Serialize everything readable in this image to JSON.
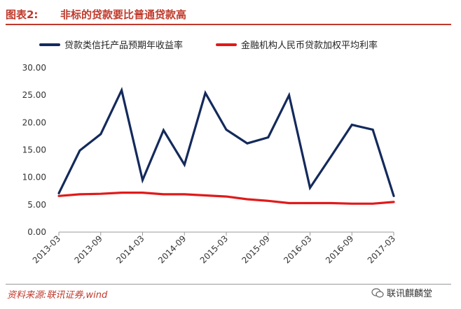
{
  "header": {
    "prefix": "图表2:",
    "title": "非标的贷款要比普通贷款高",
    "accent_color": "#c0392b"
  },
  "footer": {
    "source": "资料来源:联讯证券,wind",
    "brand": "联讯麒麟堂",
    "brand_icon": "wechat-icon"
  },
  "chart_data": {
    "type": "line",
    "title": "非标的贷款要比普通贷款高",
    "xlabel": "",
    "ylabel": "",
    "ylim": [
      0,
      30
    ],
    "yticks": [
      "0.00",
      "5.00",
      "10.00",
      "15.00",
      "20.00",
      "25.00",
      "30.00"
    ],
    "categories": [
      "2013-03",
      "2013-09",
      "2014-03",
      "2014-09",
      "2015-03",
      "2015-09",
      "2016-03",
      "2016-09",
      "2017-03"
    ],
    "grid": false,
    "legend_position": "top",
    "series": [
      {
        "name": "贷款类信托产品预期年收益率",
        "color": "#142a5c",
        "x": [
          0,
          0.5,
          1,
          1.5,
          2,
          2.5,
          3,
          3.5,
          4,
          4.5,
          5,
          5.5,
          6,
          6.5,
          7,
          7.5,
          8
        ],
        "values": [
          7.1,
          14.9,
          17.9,
          25.9,
          9.5,
          18.6,
          12.3,
          25.4,
          18.7,
          16.2,
          17.3,
          25.0,
          8.1,
          13.8,
          19.6,
          18.7,
          6.6
        ]
      },
      {
        "name": "金融机构人民币贷款加权平均利率",
        "color": "#e01a1a",
        "x": [
          0,
          0.5,
          1,
          1.5,
          2,
          2.5,
          3,
          3.5,
          4,
          4.5,
          5,
          5.5,
          6,
          6.5,
          7,
          7.5,
          8
        ],
        "values": [
          6.6,
          6.9,
          7.0,
          7.2,
          7.2,
          6.9,
          6.9,
          6.7,
          6.5,
          6.0,
          5.7,
          5.3,
          5.3,
          5.3,
          5.2,
          5.2,
          5.5
        ]
      }
    ]
  }
}
